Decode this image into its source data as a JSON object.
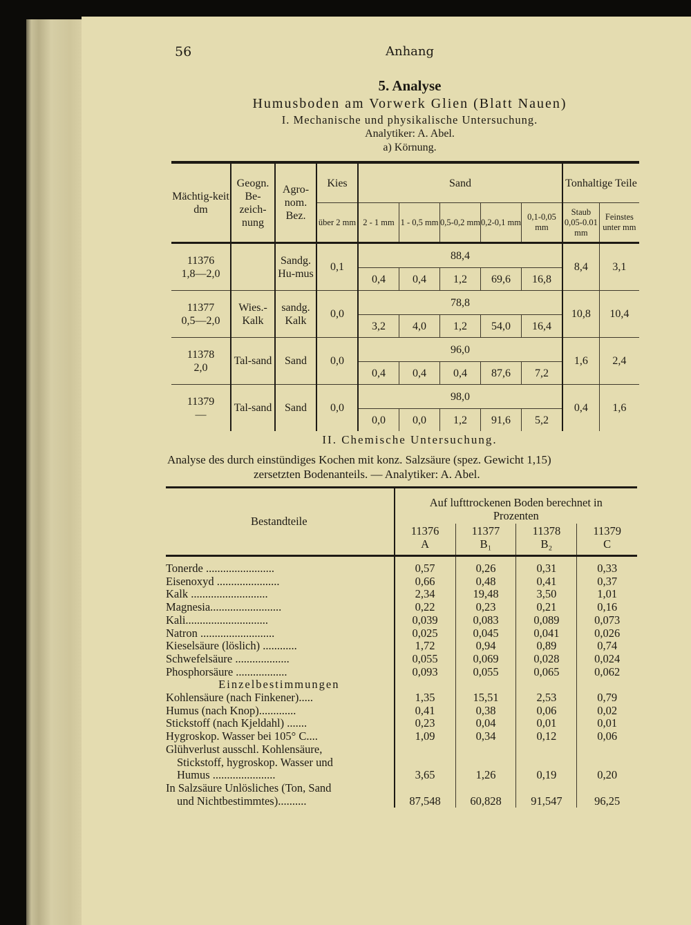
{
  "header": {
    "page_number": "56",
    "running_title": "Anhang"
  },
  "title": {
    "heading": "5. Analyse",
    "subtitle": "Humusboden am Vorwerk Glien (Blatt Nauen)",
    "section1": "I. Mechanische und physikalische Untersuchung.",
    "analyst1": "Analytiker: A. Abel.",
    "sub_a": "a) Körnung."
  },
  "grain_table": {
    "headers": {
      "thickness": "Mächtig-keit dm",
      "geogn": "Geogn. Be-zeich-nung",
      "agro": "Agro-nom. Bez.",
      "kies": "Kies",
      "kies_sub": "über 2 mm",
      "sand": "Sand",
      "sand_sub": [
        "2 - 1 mm",
        "1 - 0,5 mm",
        "0,5-0,2 mm",
        "0,2-0,1 mm",
        "0,1-0,05 mm"
      ],
      "ton": "Tonhaltige Teile",
      "staub": "Staub 0,05-0.01 mm",
      "feinstes": "Feinstes unter mm"
    },
    "rows": [
      {
        "id": "11376",
        "depth": "1,8—2,0",
        "geogn": "",
        "agro": "Sandg. Hu-mus",
        "kies": "0,1",
        "sand_total": "88,4",
        "sand": [
          "0,4",
          "0,4",
          "1,2",
          "69,6",
          "16,8"
        ],
        "staub": "8,4",
        "feinstes": "3,1"
      },
      {
        "id": "11377",
        "depth": "0,5—2,0",
        "geogn": "Wies.-Kalk",
        "agro": "sandg. Kalk",
        "kies": "0,0",
        "sand_total": "78,8",
        "sand": [
          "3,2",
          "4,0",
          "1,2",
          "54,0",
          "16,4"
        ],
        "staub": "10,8",
        "feinstes": "10,4"
      },
      {
        "id": "11378",
        "depth": "2,0",
        "geogn": "Tal-sand",
        "agro": "Sand",
        "kies": "0,0",
        "sand_total": "96,0",
        "sand": [
          "0,4",
          "0,4",
          "0,4",
          "87,6",
          "7,2"
        ],
        "staub": "1,6",
        "feinstes": "2,4"
      },
      {
        "id": "11379",
        "depth": "—",
        "geogn": "Tal-sand",
        "agro": "Sand",
        "kies": "0,0",
        "sand_total": "98,0",
        "sand": [
          "0,0",
          "0,0",
          "1,2",
          "91,6",
          "5,2"
        ],
        "staub": "0,4",
        "feinstes": "1,6"
      }
    ]
  },
  "section2": {
    "heading": "II. Chemische Untersuchung.",
    "line1": "Analyse des durch einstündiges Kochen mit konz. Salzsäure (spez. Gewicht 1,15)",
    "line2": "zersetzten Bodenanteils. — Analytiker: A. Abel."
  },
  "chem_table": {
    "col_label": "Bestandteile",
    "group_header": "Auf lufttrockenen Boden berechnet in Prozenten",
    "columns": [
      {
        "id": "11376",
        "horizon": "A"
      },
      {
        "id": "11377",
        "horizon": "B₁"
      },
      {
        "id": "11378",
        "horizon": "B₂"
      },
      {
        "id": "11379",
        "horizon": "C"
      }
    ],
    "rows": [
      {
        "label": "Tonerde ........................",
        "values": [
          "0,57",
          "0,26",
          "0,31",
          "0,33"
        ]
      },
      {
        "label": "Eisenoxyd ......................",
        "values": [
          "0,66",
          "0,48",
          "0,41",
          "0,37"
        ]
      },
      {
        "label": "Kalk ...........................",
        "values": [
          "2,34",
          "19,48",
          "3,50",
          "1,01"
        ]
      },
      {
        "label": "Magnesia.........................",
        "values": [
          "0,22",
          "0,23",
          "0,21",
          "0,16"
        ]
      },
      {
        "label": "Kali.............................",
        "values": [
          "0,039",
          "0,083",
          "0,089",
          "0,073"
        ]
      },
      {
        "label": "Natron ..........................",
        "values": [
          "0,025",
          "0,045",
          "0,041",
          "0,026"
        ]
      },
      {
        "label": "Kieselsäure (löslich) ............",
        "values": [
          "1,72",
          "0,94",
          "0,89",
          "0,74"
        ]
      },
      {
        "label": "Schwefelsäure ...................",
        "values": [
          "0,055",
          "0,069",
          "0,028",
          "0,024"
        ]
      },
      {
        "label": "Phosphorsäure ..................",
        "values": [
          "0,093",
          "0,055",
          "0,065",
          "0,062"
        ]
      }
    ],
    "subheading": "Einzelbestimmungen",
    "rows2": [
      {
        "label": "Kohlensäure (nach Finkener).....",
        "values": [
          "1,35",
          "15,51",
          "2,53",
          "0,79"
        ]
      },
      {
        "label": "Humus (nach Knop).............",
        "values": [
          "0,41",
          "0,38",
          "0,06",
          "0,02"
        ]
      },
      {
        "label": "Stickstoff (nach Kjeldahl) .......",
        "values": [
          "0,23",
          "0,04",
          "0,01",
          "0,01"
        ]
      },
      {
        "label": "Hygroskop. Wasser bei 105° C....",
        "values": [
          "1,09",
          "0,34",
          "0,12",
          "0,06"
        ]
      },
      {
        "label": "Glühverlust ausschl. Kohlensäure,",
        "values": [
          "",
          "",
          "",
          ""
        ]
      },
      {
        "label": "Stickstoff, hygroskop. Wasser und",
        "indent": true,
        "values": [
          "",
          "",
          "",
          ""
        ]
      },
      {
        "label": "Humus ......................",
        "indent": true,
        "values": [
          "3,65",
          "1,26",
          "0,19",
          "0,20"
        ]
      },
      {
        "label": "In Salzsäure Unlösliches (Ton, Sand",
        "values": [
          "",
          "",
          "",
          ""
        ]
      },
      {
        "label": "und Nichtbestimmtes)..........",
        "indent": true,
        "values": [
          "87,548",
          "60,828",
          "91,547",
          "96,25"
        ]
      }
    ]
  },
  "colors": {
    "paper": "#e4dcb0",
    "ink": "#1d1a14",
    "background": "#0c0b08"
  }
}
